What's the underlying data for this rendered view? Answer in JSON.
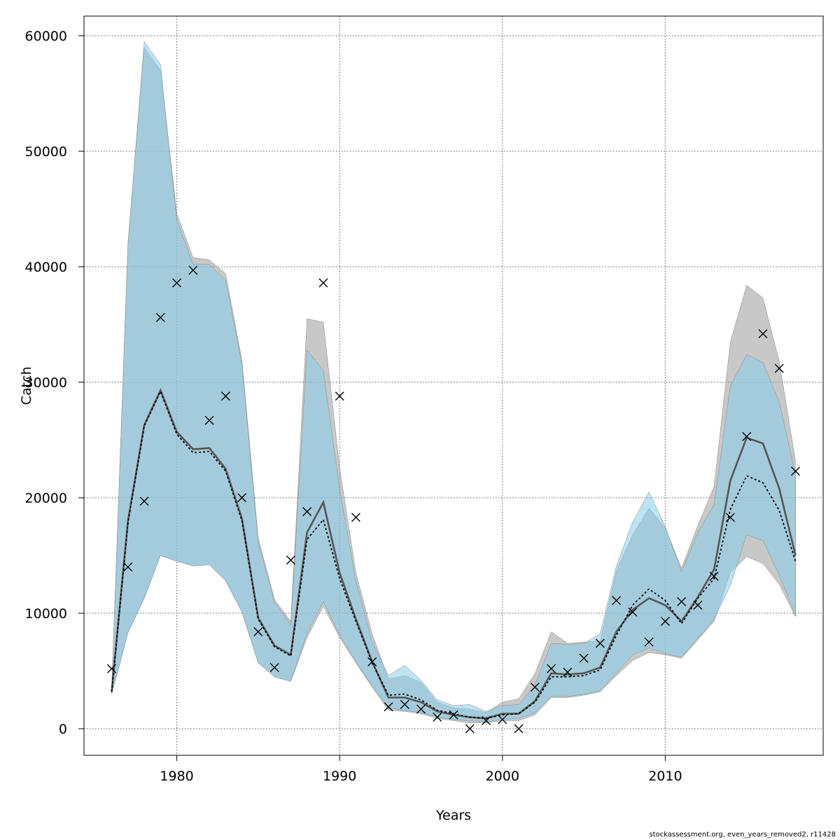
{
  "credit": "stockassessment.org, even_years_removed2, r11428",
  "chart_data": {
    "type": "area",
    "xlabel": "Years",
    "ylabel": "Catch",
    "xlim": [
      1974.3,
      2019.7
    ],
    "ylim": [
      -2300,
      61700
    ],
    "x_ticks": [
      1980,
      1990,
      2000,
      2010
    ],
    "y_ticks": [
      0,
      10000,
      20000,
      30000,
      40000,
      50000,
      60000
    ],
    "grid": true,
    "colors": {
      "grey_band": "#9b9b9b",
      "blue_band": "#87ceeb",
      "grey_line": "#555555",
      "blue_line": "#000000",
      "observed": "#000000"
    },
    "x": [
      1976,
      1977,
      1978,
      1979,
      1980,
      1981,
      1982,
      1983,
      1984,
      1985,
      1986,
      1987,
      1988,
      1989,
      1990,
      1991,
      1992,
      1993,
      1994,
      1995,
      1996,
      1997,
      1998,
      1999,
      2000,
      2001,
      2002,
      2003,
      2004,
      2005,
      2006,
      2007,
      2008,
      2009,
      2010,
      2011,
      2012,
      2013,
      2014,
      2015,
      2016,
      2017,
      2018
    ],
    "series": [
      {
        "role": "band",
        "color": "grey_band",
        "upper": [
          3500,
          42000,
          59000,
          57000,
          44600,
          40800,
          40600,
          39400,
          31900,
          16500,
          11200,
          9300,
          35500,
          35200,
          22600,
          13500,
          8200,
          4300,
          4600,
          4000,
          2300,
          1800,
          1700,
          1400,
          2300,
          2600,
          4800,
          8400,
          7400,
          7500,
          7600,
          13700,
          16800,
          19100,
          17400,
          13900,
          17600,
          21000,
          33500,
          38400,
          37300,
          31800,
          23200
        ],
        "lower": [
          3000,
          8300,
          11300,
          15000,
          14500,
          14100,
          14200,
          12800,
          10100,
          5700,
          4500,
          4100,
          7900,
          10600,
          7900,
          5700,
          3600,
          1600,
          1500,
          1300,
          900,
          700,
          500,
          500,
          700,
          700,
          1200,
          2700,
          2700,
          2900,
          3200,
          4600,
          5900,
          6600,
          6400,
          6100,
          7700,
          9300,
          13500,
          14900,
          14300,
          12500,
          9700
        ]
      },
      {
        "role": "band",
        "color": "blue_band",
        "upper": [
          3500,
          42000,
          59500,
          57500,
          44000,
          40200,
          40200,
          38800,
          31600,
          16200,
          11000,
          9000,
          32800,
          31000,
          20700,
          12800,
          7500,
          4600,
          5500,
          4200,
          2500,
          2000,
          2100,
          1500,
          2000,
          2100,
          3800,
          7400,
          7300,
          7400,
          8200,
          14100,
          17900,
          20500,
          17500,
          13600,
          17000,
          19400,
          29700,
          32400,
          31700,
          28300,
          22000
        ],
        "lower": [
          3000,
          8300,
          11300,
          15000,
          14500,
          14100,
          14200,
          12800,
          10100,
          5700,
          4500,
          4100,
          8300,
          11000,
          8100,
          5800,
          3700,
          1800,
          1600,
          1400,
          1000,
          800,
          700,
          600,
          800,
          900,
          1400,
          2800,
          2800,
          3000,
          3300,
          4800,
          6400,
          7000,
          6500,
          6200,
          7800,
          9500,
          12400,
          16800,
          16300,
          13300,
          9800
        ]
      },
      {
        "role": "line",
        "color": "grey_line",
        "values": [
          3200,
          18000,
          26300,
          29300,
          25700,
          24200,
          24300,
          22500,
          18200,
          9600,
          7200,
          6400,
          17000,
          19600,
          13500,
          9500,
          5800,
          2700,
          2700,
          2300,
          1500,
          1200,
          1000,
          900,
          1300,
          1300,
          2400,
          4800,
          4700,
          4800,
          5300,
          8400,
          10300,
          11300,
          10700,
          9300,
          11400,
          13800,
          21500,
          25200,
          24700,
          20800,
          15000
        ]
      },
      {
        "role": "line",
        "color": "blue_line",
        "dashed": true,
        "values": [
          3200,
          17800,
          26200,
          29200,
          25500,
          23900,
          24000,
          22300,
          18000,
          9500,
          7100,
          6300,
          16400,
          18100,
          13000,
          9300,
          5700,
          2900,
          3000,
          2500,
          1600,
          1300,
          1000,
          900,
          1200,
          1300,
          2300,
          4500,
          4500,
          4600,
          5100,
          8100,
          10700,
          12100,
          11100,
          9100,
          11300,
          13000,
          19000,
          21900,
          21300,
          18900,
          14500
        ]
      }
    ],
    "observed": {
      "marker": "x",
      "x": [
        1976,
        1977,
        1978,
        1979,
        1980,
        1981,
        1982,
        1983,
        1984,
        1985,
        1986,
        1987,
        1988,
        1989,
        1990,
        1991,
        1992,
        1993,
        1994,
        1995,
        1996,
        1997,
        1998,
        1999,
        2000,
        2001,
        2002,
        2003,
        2004,
        2005,
        2006,
        2007,
        2008,
        2009,
        2010,
        2011,
        2012,
        2013,
        2014,
        2015,
        2016,
        2017,
        2018
      ],
      "y": [
        5200,
        14000,
        19700,
        35600,
        38600,
        39700,
        26700,
        28800,
        20000,
        8400,
        5300,
        14600,
        18800,
        38600,
        28800,
        18300,
        5800,
        1900,
        2100,
        1700,
        1000,
        1200,
        0,
        700,
        800,
        0,
        3600,
        5200,
        4900,
        6100,
        7400,
        11100,
        10100,
        7500,
        9300,
        11000,
        10700,
        13200,
        18300,
        25300,
        34200,
        31200,
        22300
      ]
    }
  }
}
